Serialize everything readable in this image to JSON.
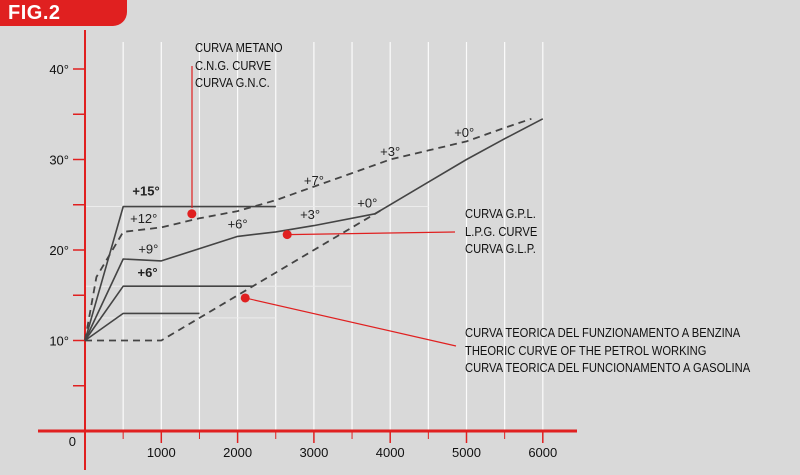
{
  "figure_label": "FIG.2",
  "colors": {
    "axis": "#e02020",
    "curve": "#444444",
    "marker": "#e02020",
    "grid": "#ffffff",
    "background": "#d9d9d9"
  },
  "chart_data": {
    "type": "line",
    "title": "",
    "xlabel": "",
    "ylabel": "",
    "x_ticks": [
      1000,
      2000,
      3000,
      4000,
      5000,
      6000
    ],
    "y_ticks": [
      "10°",
      "20°",
      "30°",
      "40°"
    ],
    "origin_label": "0",
    "xlim": [
      0,
      6500
    ],
    "ylim": [
      0,
      44
    ],
    "grid": "vertical, every 500",
    "series": [
      {
        "name": "CURVA METANO / C.N.G. CURVE / CURVA G.N.C.",
        "style": "dashed",
        "x": [
          0,
          150,
          500,
          1000,
          1500,
          2000,
          2500,
          3000,
          3500,
          4000,
          4500,
          5000,
          5500,
          5850
        ],
        "y": [
          10,
          17,
          22,
          22.5,
          23.5,
          24.3,
          25.5,
          27,
          28.5,
          30,
          31,
          32,
          33.5,
          34.5
        ]
      },
      {
        "name": "CURVA G.P.L. / L.P.G. CURVE / CURVA G.L.P.",
        "style": "solid",
        "x": [
          0,
          500,
          1000,
          2000,
          2500,
          3000,
          3800,
          4500,
          5000,
          5500,
          6000
        ],
        "y": [
          10,
          19,
          18.8,
          21.5,
          22,
          22.7,
          24,
          27.5,
          30,
          32.3,
          34.5
        ]
      },
      {
        "name": "CURVA TEORICA DEL FUNZIONAMENTO A BENZINA / THEORIC CURVE OF THE PETROL WORKING / CURVA TEORICA DEL FUNCIONAMENTO A GASOLINA",
        "style": "dashed",
        "x": [
          0,
          1000,
          1500,
          2000,
          2500,
          3000,
          3500,
          3900
        ],
        "y": [
          10,
          10,
          12.5,
          15,
          17.5,
          20,
          22.5,
          24.5
        ]
      },
      {
        "name": "",
        "style": "solid",
        "x": [
          0,
          500,
          2500
        ],
        "y": [
          10,
          24.8,
          24.8
        ]
      },
      {
        "name": "",
        "style": "solid",
        "x": [
          0,
          500,
          2200
        ],
        "y": [
          10,
          16,
          16
        ]
      },
      {
        "name": "",
        "style": "solid",
        "x": [
          0,
          500,
          1500
        ],
        "y": [
          10,
          13,
          13
        ]
      }
    ],
    "annotations": [
      {
        "text": "+15°",
        "x": 800,
        "y": 26,
        "bold": true
      },
      {
        "text": "+12°",
        "x": 770,
        "y": 23,
        "bold": false
      },
      {
        "text": "+9°",
        "x": 830,
        "y": 19.6,
        "bold": false
      },
      {
        "text": "+6°",
        "x": 820,
        "y": 17,
        "bold": true
      },
      {
        "text": "+6°",
        "x": 2000,
        "y": 22.4,
        "bold": false
      },
      {
        "text": "+3°",
        "x": 2950,
        "y": 23.4,
        "bold": false
      },
      {
        "text": "+0°",
        "x": 3700,
        "y": 24.7,
        "bold": false
      },
      {
        "text": "+7°",
        "x": 3000,
        "y": 27.2,
        "bold": false
      },
      {
        "text": "+3°",
        "x": 4000,
        "y": 30.4,
        "bold": false
      },
      {
        "text": "+0°",
        "x": 4970,
        "y": 32.5,
        "bold": false
      }
    ],
    "callouts": [
      {
        "lines": [
          "CURVA METANO",
          "C.N.G. CURVE",
          "CURVA G.N.C."
        ],
        "marker": {
          "x": 1400,
          "y": 24
        }
      },
      {
        "lines": [
          "CURVA G.P.L.",
          "L.P.G. CURVE",
          "CURVA G.L.P."
        ],
        "marker": {
          "x": 2650,
          "y": 21.7
        }
      },
      {
        "lines": [
          "CURVA TEORICA DEL FUNZIONAMENTO A BENZINA",
          "THEORIC CURVE OF THE PETROL WORKING",
          "CURVA TEORICA DEL FUNCIONAMENTO A GASOLINA"
        ],
        "marker": {
          "x": 2100,
          "y": 14.7
        }
      }
    ]
  }
}
